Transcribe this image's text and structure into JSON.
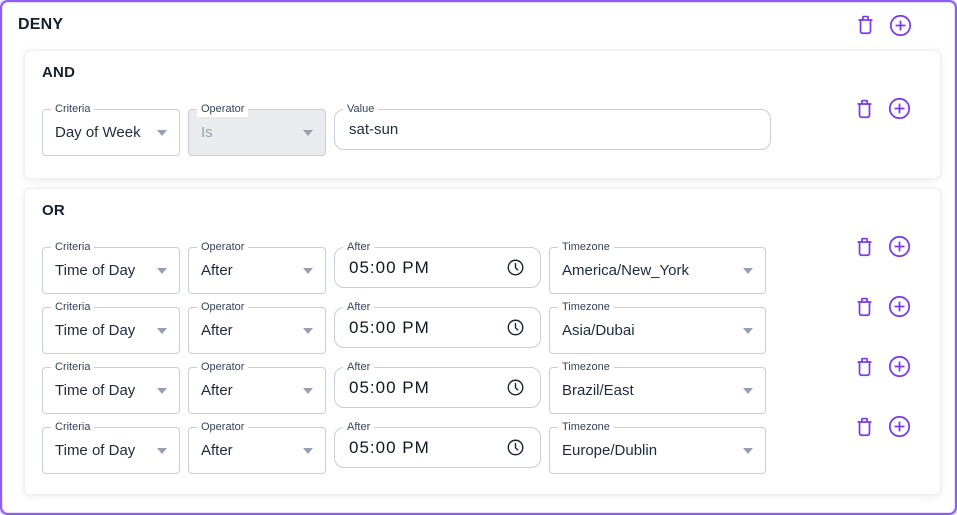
{
  "panel": {
    "title": "DENY"
  },
  "colors": {
    "accent_purple": "#7c3aed",
    "panel_border": "#8b5cf6",
    "text_dark": "#15202e",
    "label_color": "#36435a",
    "field_border": "#c8cdd6",
    "disabled_bg": "#e9ebee",
    "disabled_text": "#9aa2b0"
  },
  "and_group": {
    "label": "AND",
    "row": {
      "criteria_label": "Criteria",
      "criteria": "Day of Week",
      "operator_label": "Operator",
      "operator": "Is",
      "value_label": "Value",
      "value": "sat-sun"
    }
  },
  "or_group": {
    "label": "OR",
    "field_labels": {
      "criteria": "Criteria",
      "operator": "Operator",
      "after": "After",
      "timezone": "Timezone"
    },
    "rows": [
      {
        "criteria": "Time of Day",
        "operator": "After",
        "after": "05:00 PM",
        "timezone": "America/New_York"
      },
      {
        "criteria": "Time of Day",
        "operator": "After",
        "after": "05:00 PM",
        "timezone": "Asia/Dubai"
      },
      {
        "criteria": "Time of Day",
        "operator": "After",
        "after": "05:00 PM",
        "timezone": "Brazil/East"
      },
      {
        "criteria": "Time of Day",
        "operator": "After",
        "after": "05:00 PM",
        "timezone": "Europe/Dublin"
      }
    ]
  }
}
